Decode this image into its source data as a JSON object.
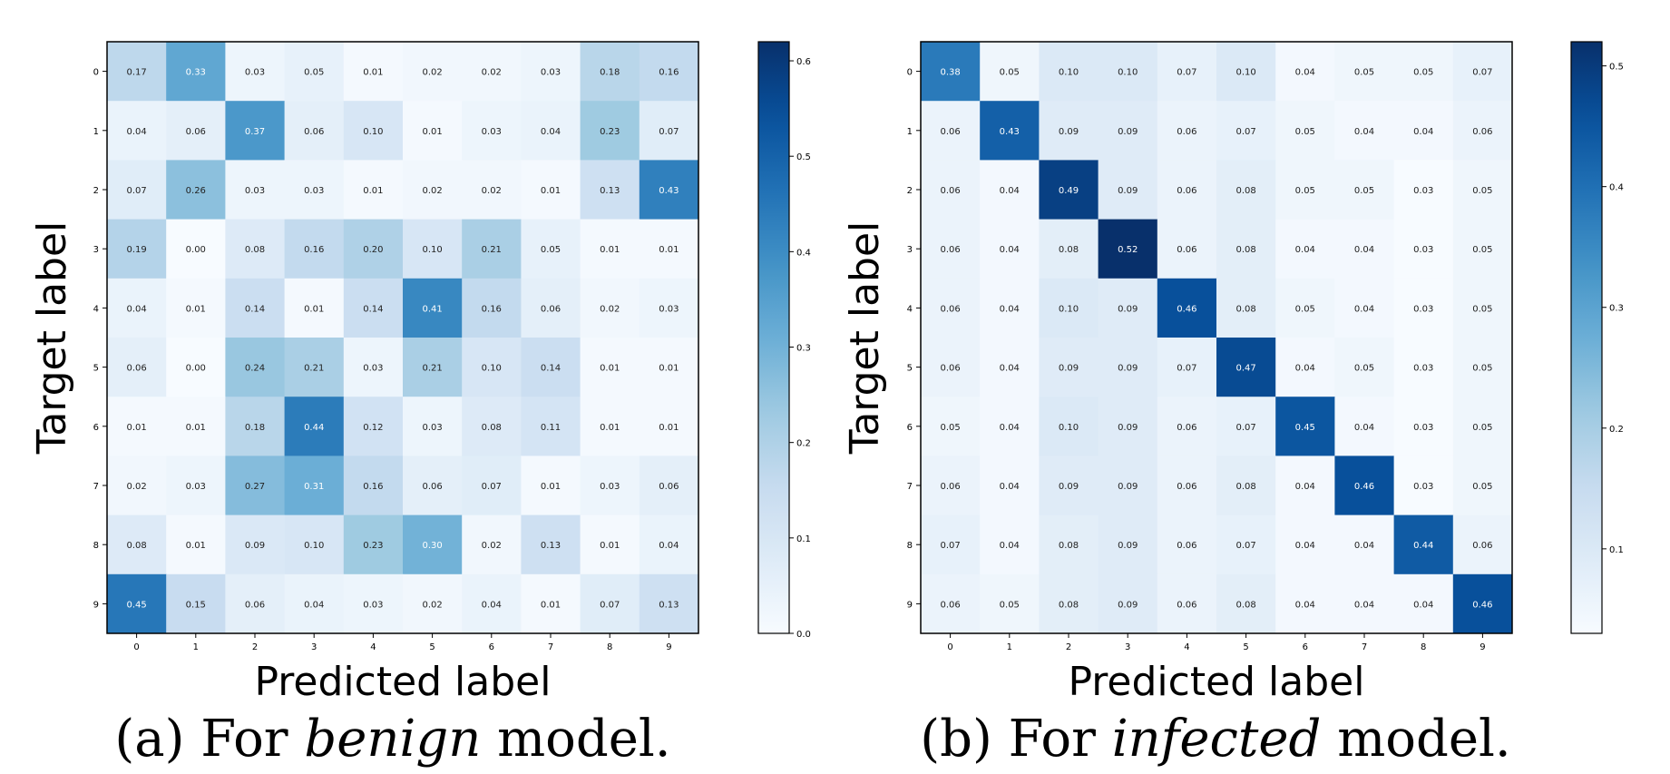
{
  "chart_data": [
    {
      "type": "heatmap",
      "colormap": "Blues",
      "xlabel": "Predicted label",
      "ylabel": "Target label",
      "caption": {
        "prefix": "(a) For ",
        "emphasis": "benign",
        "suffix": " model."
      },
      "x_ticks": [
        "0",
        "1",
        "2",
        "3",
        "4",
        "5",
        "6",
        "7",
        "8",
        "9"
      ],
      "y_ticks": [
        "0",
        "1",
        "2",
        "3",
        "4",
        "5",
        "6",
        "7",
        "8",
        "9"
      ],
      "values": [
        [
          0.17,
          0.33,
          0.03,
          0.05,
          0.01,
          0.02,
          0.02,
          0.03,
          0.18,
          0.16
        ],
        [
          0.04,
          0.06,
          0.37,
          0.06,
          0.1,
          0.01,
          0.03,
          0.04,
          0.23,
          0.07
        ],
        [
          0.07,
          0.26,
          0.03,
          0.03,
          0.01,
          0.02,
          0.02,
          0.01,
          0.13,
          0.43
        ],
        [
          0.19,
          0.0,
          0.08,
          0.16,
          0.2,
          0.1,
          0.21,
          0.05,
          0.01,
          0.01
        ],
        [
          0.04,
          0.01,
          0.14,
          0.01,
          0.14,
          0.41,
          0.16,
          0.06,
          0.02,
          0.03
        ],
        [
          0.06,
          0.0,
          0.24,
          0.21,
          0.03,
          0.21,
          0.1,
          0.14,
          0.01,
          0.01
        ],
        [
          0.01,
          0.01,
          0.18,
          0.44,
          0.12,
          0.03,
          0.08,
          0.11,
          0.01,
          0.01
        ],
        [
          0.02,
          0.03,
          0.27,
          0.31,
          0.16,
          0.06,
          0.07,
          0.01,
          0.03,
          0.06
        ],
        [
          0.08,
          0.01,
          0.09,
          0.1,
          0.23,
          0.3,
          0.02,
          0.13,
          0.01,
          0.04
        ],
        [
          0.45,
          0.15,
          0.06,
          0.04,
          0.03,
          0.02,
          0.04,
          0.01,
          0.07,
          0.13
        ]
      ],
      "colorbar": {
        "range": [
          0.0,
          0.62
        ],
        "ticks": [
          0.0,
          0.1,
          0.2,
          0.3,
          0.4,
          0.5,
          0.6
        ],
        "tick_labels": [
          "0.0",
          "0.1",
          "0.2",
          "0.3",
          "0.4",
          "0.5",
          "0.6"
        ]
      }
    },
    {
      "type": "heatmap",
      "colormap": "Blues",
      "xlabel": "Predicted label",
      "ylabel": "Target label",
      "caption": {
        "prefix": "(b) For ",
        "emphasis": "infected",
        "suffix": " model."
      },
      "x_ticks": [
        "0",
        "1",
        "2",
        "3",
        "4",
        "5",
        "6",
        "7",
        "8",
        "9"
      ],
      "y_ticks": [
        "0",
        "1",
        "2",
        "3",
        "4",
        "5",
        "6",
        "7",
        "8",
        "9"
      ],
      "values": [
        [
          0.38,
          0.05,
          0.1,
          0.1,
          0.07,
          0.1,
          0.04,
          0.05,
          0.05,
          0.07
        ],
        [
          0.06,
          0.43,
          0.09,
          0.09,
          0.06,
          0.07,
          0.05,
          0.04,
          0.04,
          0.06
        ],
        [
          0.06,
          0.04,
          0.49,
          0.09,
          0.06,
          0.08,
          0.05,
          0.05,
          0.03,
          0.05
        ],
        [
          0.06,
          0.04,
          0.08,
          0.52,
          0.06,
          0.08,
          0.04,
          0.04,
          0.03,
          0.05
        ],
        [
          0.06,
          0.04,
          0.1,
          0.09,
          0.46,
          0.08,
          0.05,
          0.04,
          0.03,
          0.05
        ],
        [
          0.06,
          0.04,
          0.09,
          0.09,
          0.07,
          0.47,
          0.04,
          0.05,
          0.03,
          0.05
        ],
        [
          0.05,
          0.04,
          0.1,
          0.09,
          0.06,
          0.07,
          0.45,
          0.04,
          0.03,
          0.05
        ],
        [
          0.06,
          0.04,
          0.09,
          0.09,
          0.06,
          0.08,
          0.04,
          0.46,
          0.03,
          0.05
        ],
        [
          0.07,
          0.04,
          0.08,
          0.09,
          0.06,
          0.07,
          0.04,
          0.04,
          0.44,
          0.06
        ],
        [
          0.06,
          0.05,
          0.08,
          0.09,
          0.06,
          0.08,
          0.04,
          0.04,
          0.04,
          0.46
        ]
      ],
      "colorbar": {
        "range": [
          0.03,
          0.52
        ],
        "ticks": [
          0.1,
          0.2,
          0.3,
          0.4,
          0.5
        ],
        "tick_labels": [
          "0.1",
          "0.2",
          "0.3",
          "0.4",
          "0.5"
        ]
      }
    }
  ]
}
